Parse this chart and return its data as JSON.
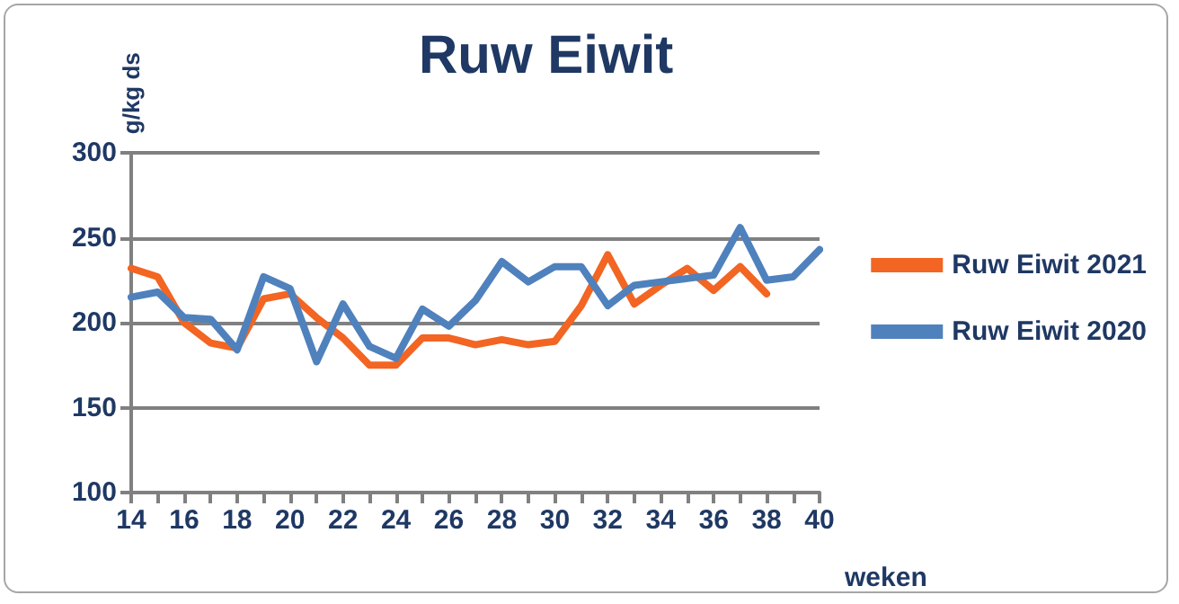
{
  "chart_data": {
    "type": "line",
    "title": "Ruw Eiwit",
    "xlabel": "weken",
    "ylabel": "g/kg ds",
    "x": [
      14,
      15,
      16,
      17,
      18,
      19,
      20,
      21,
      22,
      23,
      24,
      25,
      26,
      27,
      28,
      29,
      30,
      31,
      32,
      33,
      34,
      35,
      36,
      37,
      38,
      39,
      40
    ],
    "series": [
      {
        "name": "Ruw Eiwit 2021",
        "color": "#f26522",
        "values": [
          232,
          227,
          200,
          188,
          185,
          214,
          217,
          203,
          191,
          175,
          175,
          191,
          191,
          187,
          190,
          187,
          189,
          210,
          240,
          211,
          222,
          232,
          219,
          233,
          217,
          null,
          null
        ]
      },
      {
        "name": "Ruw Eiwit 2020",
        "color": "#4f81bd",
        "values": [
          215,
          218,
          203,
          202,
          184,
          227,
          220,
          177,
          211,
          186,
          179,
          208,
          198,
          213,
          236,
          224,
          233,
          233,
          210,
          222,
          224,
          226,
          228,
          256,
          225,
          227,
          243
        ]
      }
    ],
    "xlim": [
      14,
      40
    ],
    "xticks": [
      14,
      {
        "value": 15,
        "label": null
      },
      16,
      {
        "value": 17,
        "label": null
      },
      18,
      {
        "value": 19,
        "label": null
      },
      20,
      {
        "value": 21,
        "label": null
      },
      22,
      {
        "value": 23,
        "label": null
      },
      24,
      {
        "value": 25,
        "label": null
      },
      26,
      {
        "value": 27,
        "label": null
      },
      28,
      {
        "value": 29,
        "label": null
      },
      30,
      {
        "value": 31,
        "label": null
      },
      32,
      {
        "value": 33,
        "label": null
      },
      34,
      {
        "value": 35,
        "label": null
      },
      36,
      {
        "value": 37,
        "label": null
      },
      38,
      {
        "value": 39,
        "label": null
      },
      40
    ],
    "ylim": [
      100,
      300
    ],
    "yticks": [
      100,
      150,
      200,
      250,
      300
    ],
    "grid": "y",
    "legend": "right",
    "marker": "none",
    "line_style": "solid"
  }
}
